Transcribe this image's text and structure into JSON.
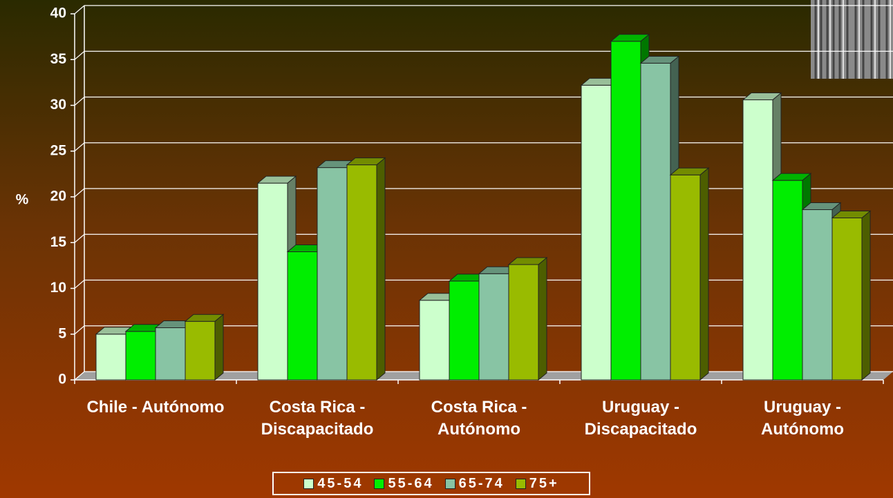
{
  "chart_data": {
    "type": "bar3d",
    "ylabel": "%",
    "categories": [
      "Chile - Autónomo",
      "Costa Rica - Discapacitado",
      "Costa Rica - Autónomo",
      "Uruguay - Discapacitado",
      "Uruguay - Autónomo"
    ],
    "series": [
      {
        "name": "45-54",
        "color": "#ccffcc",
        "values": [
          5.0,
          21.5,
          8.7,
          32.2,
          30.6
        ]
      },
      {
        "name": "55-64",
        "color": "#00ee00",
        "values": [
          5.3,
          14.0,
          10.8,
          37.0,
          21.8
        ]
      },
      {
        "name": "65-74",
        "color": "#88c4a4",
        "values": [
          5.7,
          23.2,
          11.6,
          34.6,
          18.6
        ]
      },
      {
        "name": "75+",
        "color": "#99bb00",
        "values": [
          6.4,
          23.5,
          12.6,
          22.4,
          17.7
        ]
      }
    ],
    "ylim": [
      0,
      40
    ],
    "yticks": [
      0,
      5,
      10,
      15,
      20,
      25,
      30,
      35,
      40
    ],
    "grid": true,
    "legend": "bottom"
  }
}
